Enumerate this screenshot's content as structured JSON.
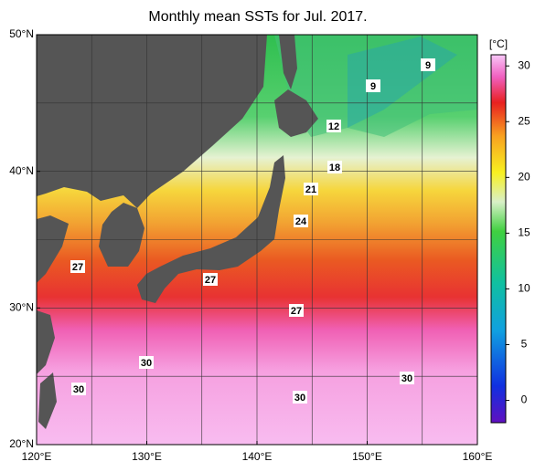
{
  "title": "Monthly mean SSTs for Jul. 2017.",
  "map": {
    "lon_labels": [
      {
        "value": 120,
        "label": "120°E"
      },
      {
        "value": 130,
        "label": "130°E"
      },
      {
        "value": 140,
        "label": "140°E"
      },
      {
        "value": 150,
        "label": "150°E"
      },
      {
        "value": 160,
        "label": "160°E"
      }
    ],
    "lat_labels": [
      {
        "value": 50,
        "label": "50°N"
      },
      {
        "value": 40,
        "label": "40°N"
      },
      {
        "value": 30,
        "label": "30°N"
      },
      {
        "value": 20,
        "label": "20°N"
      }
    ],
    "contour_labels": [
      9,
      9,
      12,
      18,
      21,
      24,
      27,
      27,
      27,
      30,
      30,
      30,
      30
    ]
  },
  "colorbar": {
    "unit": "[°C]",
    "lim": [
      -2,
      31
    ],
    "ticks": [
      0,
      5,
      10,
      15,
      20,
      25,
      30
    ]
  }
}
